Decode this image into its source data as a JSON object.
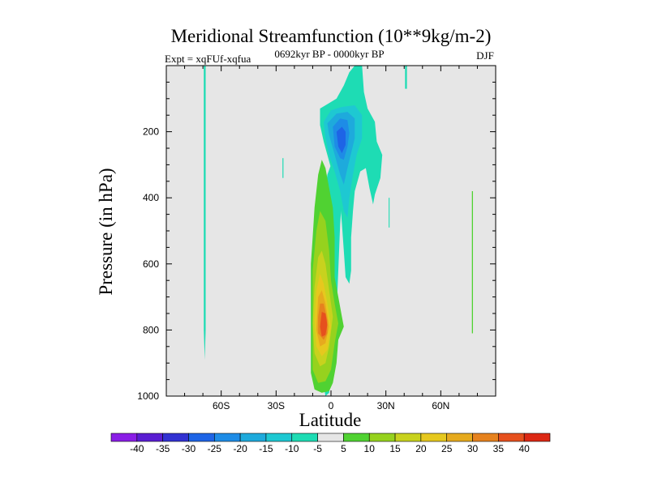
{
  "chart_data": {
    "type": "heatmap",
    "title": "Meridional Streamfunction (10**9kg/m-2)",
    "subtitle_left": "Expt = xqFUf-xqfua",
    "subtitle_center": "0692kyr BP - 0000kyr BP",
    "subtitle_right": "DJF",
    "xlabel": "Latitude",
    "ylabel": "Pressure (in hPa)",
    "xlim": [
      -90,
      90
    ],
    "ylim": [
      1000,
      0
    ],
    "x_ticks": [
      {
        "value": -60,
        "label": "60S"
      },
      {
        "value": -30,
        "label": "30S"
      },
      {
        "value": 0,
        "label": "0"
      },
      {
        "value": 30,
        "label": "30N"
      },
      {
        "value": 60,
        "label": "60N"
      }
    ],
    "y_ticks": [
      {
        "value": 200,
        "label": "200"
      },
      {
        "value": 400,
        "label": "400"
      },
      {
        "value": 600,
        "label": "600"
      },
      {
        "value": 800,
        "label": "800"
      },
      {
        "value": 1000,
        "label": "1000"
      }
    ],
    "background_color": "#e6e6e6",
    "colorbar": {
      "labels": [
        "-40",
        "-35",
        "-30",
        "-25",
        "-20",
        "-15",
        "-10",
        "-5",
        "5",
        "10",
        "15",
        "20",
        "25",
        "30",
        "35",
        "40"
      ],
      "colors": [
        "#8a1ee6",
        "#5a1ed2",
        "#3232d2",
        "#1e64e6",
        "#1e8ce6",
        "#1eaadc",
        "#1ec8d2",
        "#1edcb4",
        "#e6e6e6",
        "#50d232",
        "#96d21e",
        "#c8d21e",
        "#e6c81e",
        "#e6aa1e",
        "#e6821e",
        "#e6501e",
        "#dc2814"
      ]
    },
    "regions": [
      {
        "name": "sh-high-lat-thin",
        "value": "-5",
        "color": "#1edcb4",
        "pts": [
          [
            -69.5,
            0
          ],
          [
            -68.5,
            0
          ],
          [
            -68.5,
            800
          ],
          [
            -69,
            890
          ],
          [
            -69.5,
            800
          ]
        ]
      },
      {
        "name": "tiny-30s",
        "value": "-5",
        "color": "#1edcb4",
        "pts": [
          [
            -26.5,
            280
          ],
          [
            -26,
            280
          ],
          [
            -26,
            340
          ],
          [
            -26.5,
            340
          ]
        ]
      },
      {
        "name": "lower-trop-tropics",
        "value": "-5",
        "color": "#1edcb4",
        "pts": [
          [
            -7,
            760
          ],
          [
            -8,
            840
          ],
          [
            -3,
            1000
          ],
          [
            -1,
            990
          ],
          [
            1,
            900
          ],
          [
            3,
            750
          ],
          [
            4,
            620
          ],
          [
            5,
            480
          ],
          [
            6,
            400
          ],
          [
            4,
            330
          ],
          [
            2,
            270
          ],
          [
            0,
            300
          ],
          [
            -2,
            330
          ],
          [
            -4,
            430
          ],
          [
            -6,
            550
          ],
          [
            -7,
            650
          ]
        ]
      },
      {
        "name": "upper-trop-cell",
        "value": "-5",
        "color": "#1edcb4",
        "pts": [
          [
            -6,
            130
          ],
          [
            -3,
            120
          ],
          [
            3,
            100
          ],
          [
            7,
            60
          ],
          [
            10,
            20
          ],
          [
            13,
            0
          ],
          [
            17,
            0
          ],
          [
            18,
            80
          ],
          [
            20,
            130
          ],
          [
            24,
            170
          ],
          [
            25,
            230
          ],
          [
            28,
            270
          ],
          [
            27,
            340
          ],
          [
            24,
            390
          ],
          [
            23,
            420
          ],
          [
            21,
            370
          ],
          [
            19,
            310
          ],
          [
            16,
            320
          ],
          [
            13,
            380
          ],
          [
            12,
            440
          ],
          [
            11,
            520
          ],
          [
            11,
            620
          ],
          [
            10,
            660
          ],
          [
            8,
            640
          ],
          [
            7,
            560
          ],
          [
            6,
            480
          ],
          [
            5,
            410
          ],
          [
            1,
            330
          ],
          [
            -1,
            290
          ],
          [
            -4,
            230
          ],
          [
            -6,
            180
          ]
        ]
      },
      {
        "name": "upper-cell-10",
        "value": "-10",
        "color": "#1ec8d2",
        "pts": [
          [
            -4,
            170
          ],
          [
            0,
            135
          ],
          [
            6,
            125
          ],
          [
            13,
            120
          ],
          [
            17,
            150
          ],
          [
            17,
            220
          ],
          [
            14,
            270
          ],
          [
            12,
            330
          ],
          [
            10,
            400
          ],
          [
            9,
            460
          ],
          [
            7,
            440
          ],
          [
            5,
            380
          ],
          [
            2,
            320
          ],
          [
            -1,
            270
          ],
          [
            -3,
            220
          ]
        ]
      },
      {
        "name": "upper-cell-15",
        "value": "-15",
        "color": "#1eaadc",
        "pts": [
          [
            -2,
            175
          ],
          [
            3,
            145
          ],
          [
            9,
            140
          ],
          [
            13,
            160
          ],
          [
            13,
            220
          ],
          [
            11,
            265
          ],
          [
            9,
            310
          ],
          [
            7,
            360
          ],
          [
            5,
            330
          ],
          [
            3,
            290
          ],
          [
            1,
            250
          ],
          [
            -1,
            210
          ]
        ]
      },
      {
        "name": "upper-cell-20",
        "value": "-20",
        "color": "#1e8ce6",
        "pts": [
          [
            1,
            185
          ],
          [
            5,
            160
          ],
          [
            9,
            165
          ],
          [
            10,
            205
          ],
          [
            9,
            245
          ],
          [
            7,
            285
          ],
          [
            5,
            280
          ],
          [
            2,
            245
          ]
        ]
      },
      {
        "name": "upper-cell-25",
        "value": "-25",
        "color": "#1e64e6",
        "pts": [
          [
            3,
            200
          ],
          [
            6,
            185
          ],
          [
            8,
            200
          ],
          [
            8,
            240
          ],
          [
            6,
            265
          ],
          [
            4,
            245
          ]
        ]
      },
      {
        "name": "tiny-15s-mid",
        "value": "-5",
        "color": "#1edcb4",
        "pts": [
          [
            1,
            470
          ],
          [
            2,
            470
          ],
          [
            2,
            520
          ],
          [
            1,
            520
          ]
        ]
      },
      {
        "name": "nh-tiny-32n",
        "value": "-5",
        "color": "#1edcb4",
        "pts": [
          [
            31.5,
            400
          ],
          [
            32,
            400
          ],
          [
            32,
            490
          ],
          [
            31.5,
            490
          ]
        ]
      },
      {
        "name": "nh-tiny-top-41n",
        "value": "-5",
        "color": "#1edcb4",
        "pts": [
          [
            40.5,
            0
          ],
          [
            41.5,
            0
          ],
          [
            41.5,
            70
          ],
          [
            40.5,
            70
          ]
        ]
      },
      {
        "name": "nh-pos-thin",
        "value": "5",
        "color": "#50d232",
        "pts": [
          [
            77,
            380
          ],
          [
            77.6,
            380
          ],
          [
            77.6,
            810
          ],
          [
            77,
            810
          ]
        ]
      },
      {
        "name": "hadley-pos-5",
        "value": "5",
        "color": "#50d232",
        "pts": [
          [
            -10,
            520
          ],
          [
            -9,
            430
          ],
          [
            -7,
            330
          ],
          [
            -5,
            285
          ],
          [
            -3,
            310
          ],
          [
            -1,
            370
          ],
          [
            1,
            430
          ],
          [
            2,
            520
          ],
          [
            2,
            640
          ],
          [
            4,
            700
          ],
          [
            6,
            760
          ],
          [
            7,
            790
          ],
          [
            4,
            830
          ],
          [
            3,
            900
          ],
          [
            1,
            960
          ],
          [
            -1,
            985
          ],
          [
            -5,
            990
          ],
          [
            -9,
            980
          ],
          [
            -11,
            930
          ],
          [
            -11,
            830
          ],
          [
            -11,
            700
          ],
          [
            -11,
            600
          ]
        ]
      },
      {
        "name": "hadley-pos-10",
        "value": "10",
        "color": "#96d21e",
        "pts": [
          [
            -10,
            620
          ],
          [
            -8,
            500
          ],
          [
            -6,
            440
          ],
          [
            -3,
            470
          ],
          [
            -1,
            560
          ],
          [
            0,
            650
          ],
          [
            2,
            720
          ],
          [
            4,
            780
          ],
          [
            2,
            840
          ],
          [
            0,
            920
          ],
          [
            -3,
            955
          ],
          [
            -7,
            960
          ],
          [
            -10,
            920
          ],
          [
            -10,
            800
          ],
          [
            -10,
            700
          ]
        ]
      },
      {
        "name": "hadley-pos-15",
        "value": "15",
        "color": "#c8d21e",
        "pts": [
          [
            -9,
            670
          ],
          [
            -7,
            580
          ],
          [
            -5,
            560
          ],
          [
            -3,
            600
          ],
          [
            -1,
            680
          ],
          [
            1,
            760
          ],
          [
            -1,
            850
          ],
          [
            -3,
            900
          ],
          [
            -6,
            910
          ],
          [
            -9,
            870
          ],
          [
            -10,
            780
          ]
        ]
      },
      {
        "name": "hadley-pos-20",
        "value": "20",
        "color": "#e6c81e",
        "pts": [
          [
            -8,
            680
          ],
          [
            -6,
            630
          ],
          [
            -4,
            660
          ],
          [
            -2,
            720
          ],
          [
            0,
            790
          ],
          [
            -2,
            860
          ],
          [
            -5,
            880
          ],
          [
            -8,
            850
          ],
          [
            -9,
            770
          ]
        ]
      },
      {
        "name": "hadley-pos-25",
        "value": "25",
        "color": "#e6aa1e",
        "pts": [
          [
            -7,
            700
          ],
          [
            -5,
            680
          ],
          [
            -3,
            720
          ],
          [
            -1,
            790
          ],
          [
            -3,
            840
          ],
          [
            -6,
            850
          ],
          [
            -8,
            800
          ]
        ]
      },
      {
        "name": "hadley-pos-30",
        "value": "30",
        "color": "#e6821e",
        "pts": [
          [
            -6,
            720
          ],
          [
            -4,
            720
          ],
          [
            -2,
            770
          ],
          [
            -2,
            810
          ],
          [
            -4,
            830
          ],
          [
            -7,
            810
          ],
          [
            -7,
            760
          ]
        ]
      },
      {
        "name": "hadley-pos-35",
        "value": "35",
        "color": "#e6501e",
        "pts": [
          [
            -5,
            745
          ],
          [
            -3,
            750
          ],
          [
            -2,
            785
          ],
          [
            -3,
            815
          ],
          [
            -5,
            820
          ],
          [
            -6,
            790
          ]
        ]
      }
    ]
  }
}
